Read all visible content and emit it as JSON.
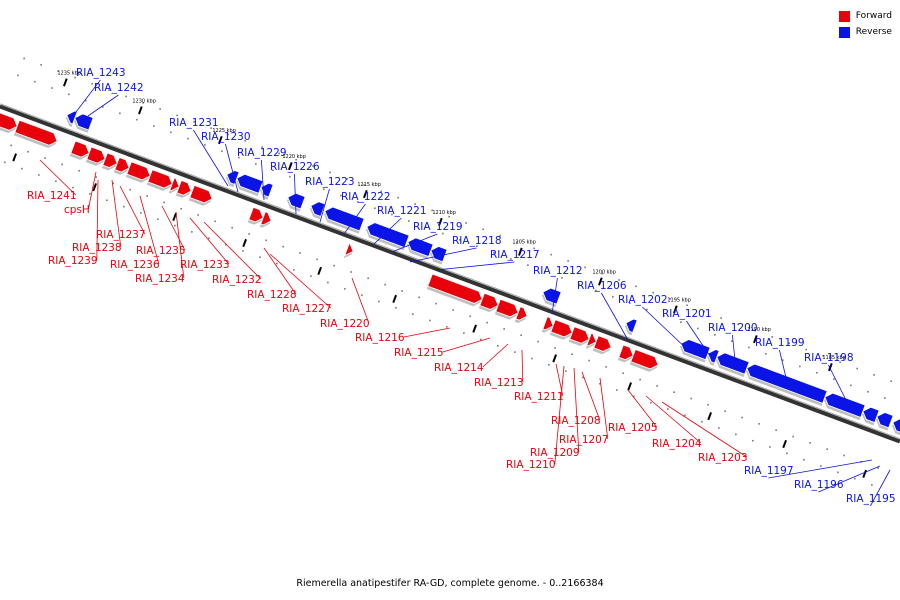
{
  "legend": {
    "forward": {
      "label": "Forward",
      "color": "#e8000b"
    },
    "reverse": {
      "label": "Reverse",
      "color": "#0a14e6"
    }
  },
  "caption": "Riemerella anatipestifer RA-GD, complete genome. - 0..2166384",
  "ticks": [
    "1235 kbp",
    "1230 kbp",
    "1225 kbp",
    "1220 kbp",
    "1215 kbp",
    "1210 kbp",
    "1205 kbp",
    "1200 kbp",
    "1195 kbp",
    "1190 kbp",
    "1185 kbp"
  ],
  "reverse_labels": [
    "RIA_1243",
    "RIA_1242",
    "RIA_1231",
    "RIA_1230",
    "RIA_1229",
    "RIA_1226",
    "RIA_1223",
    "RIA_1222",
    "RIA_1221",
    "RIA_1219",
    "RIA_1218",
    "RIA_1217",
    "RIA_1212",
    "RIA_1206",
    "RIA_1202",
    "RIA_1201",
    "RIA_1200",
    "RIA_1199",
    "RIA_1198",
    "RIA_1197",
    "RIA_1196",
    "RIA_1195"
  ],
  "forward_labels": [
    "RIA_1241",
    "cpsH",
    "RIA_1238",
    "RIA_1239",
    "RIA_1237",
    "RIA_1236",
    "RIA_1235",
    "RIA_1234",
    "RIA_1233",
    "RIA_1232",
    "RIA_1228",
    "RIA_1227",
    "RIA_1220",
    "RIA_1216",
    "RIA_1215",
    "RIA_1214",
    "RIA_1213",
    "RIA_1211",
    "RIA_1208",
    "RIA_1207",
    "RIA_1209",
    "RIA_1210",
    "RIA_1205",
    "RIA_1204",
    "RIA_1203"
  ]
}
